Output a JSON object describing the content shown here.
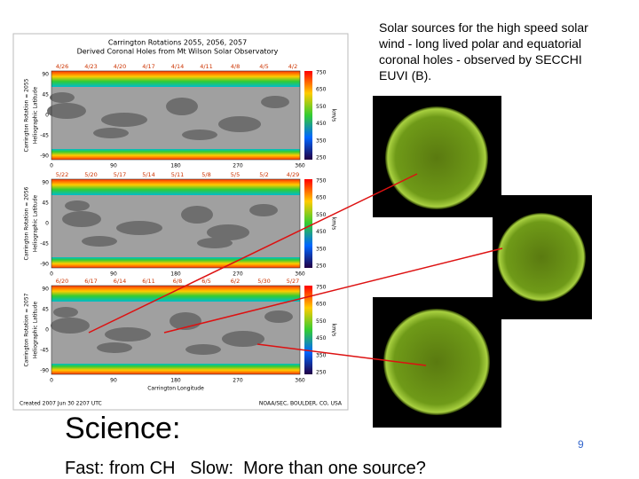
{
  "slide": {
    "caption": "Solar sources for the high speed solar wind - long lived polar and equatorial coronal holes - observed by SECCHI EUVI (B).",
    "heading": "Science:",
    "page_number": "9",
    "footer_text": "Fast: from CH   Slow:  More than one source?"
  },
  "figure": {
    "title": "Carrington Rotations 2055, 2056, 2057",
    "subtitle": "Derived Coronal Holes from Mt Wilson Solar Observatory",
    "panels": [
      {
        "rotation_label": "Carrington Rotation = 2055",
        "latitude_label": "Heliographic Latitude",
        "dates": [
          "4/26",
          "4/23",
          "4/20",
          "4/17",
          "4/14",
          "4/11",
          "4/8",
          "4/5",
          "4/2"
        ],
        "latitude_ticks": [
          "90",
          "45",
          "0",
          "-45",
          "-90"
        ],
        "longitude_ticks": [
          "0",
          "90",
          "180",
          "270",
          "360"
        ],
        "speed_ticks": [
          "750",
          "650",
          "550",
          "450",
          "350",
          "250"
        ],
        "speed_unit": "km/s"
      },
      {
        "rotation_label": "Carrington Rotation = 2056",
        "latitude_label": "Heliographic Latitude",
        "dates": [
          "5/22",
          "5/20",
          "5/17",
          "5/14",
          "5/11",
          "5/8",
          "5/5",
          "5/2",
          "4/29"
        ],
        "latitude_ticks": [
          "90",
          "45",
          "0",
          "-45",
          "-90"
        ],
        "longitude_ticks": [
          "0",
          "90",
          "180",
          "270",
          "360"
        ],
        "speed_ticks": [
          "750",
          "650",
          "550",
          "450",
          "350",
          "250"
        ],
        "speed_unit": "km/s"
      },
      {
        "rotation_label": "Carrington Rotation = 2057",
        "latitude_label": "Heliographic Latitude",
        "dates": [
          "6/20",
          "6/17",
          "6/14",
          "6/11",
          "6/8",
          "6/5",
          "6/2",
          "5/30",
          "5/27"
        ],
        "latitude_ticks": [
          "90",
          "45",
          "0",
          "-45",
          "-90"
        ],
        "longitude_ticks": [
          "0",
          "90",
          "180",
          "270",
          "360"
        ],
        "speed_ticks": [
          "750",
          "650",
          "550",
          "450",
          "350",
          "250"
        ],
        "speed_unit": "km/s"
      }
    ],
    "x_axis_label": "Carrington Longitude",
    "created": "Created 2007 Jun 30 2207 UTC",
    "credit": "NOAA/SEC, BOULDER, CO, USA"
  }
}
